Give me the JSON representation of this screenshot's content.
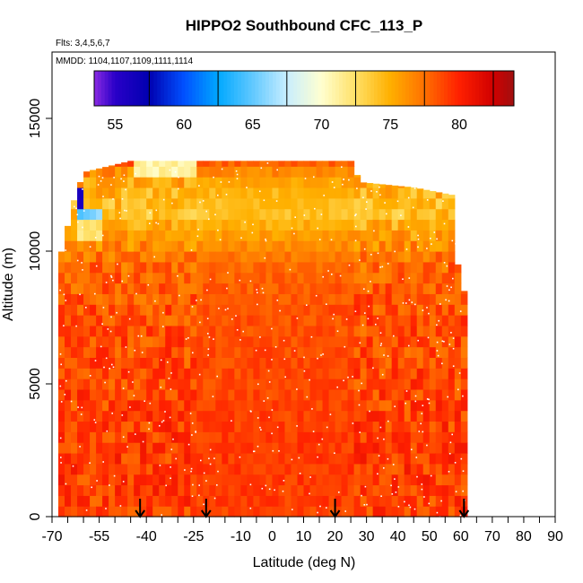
{
  "chart_data": {
    "type": "heatmap",
    "title": "HIPPO2 Southbound CFC_113_P",
    "flights_note": "Flts: 3,4,5,6,7",
    "dates_note": "MMDD: 1104,1107,1109,1111,1114",
    "xlabel": "Latitude (deg N)",
    "ylabel": "Altitude (m)",
    "xlim": [
      -70,
      90
    ],
    "ylim": [
      0,
      17500
    ],
    "x_ticks": [
      -70,
      -55,
      -40,
      -25,
      -10,
      0,
      10,
      20,
      30,
      40,
      50,
      60,
      70,
      80,
      90
    ],
    "y_ticks": [
      0,
      5000,
      10000,
      15000
    ],
    "colorbar": {
      "range": [
        51,
        81.5
      ],
      "ticks": [
        55,
        60,
        65,
        70,
        75,
        80
      ],
      "stops": [
        {
          "v": 51.0,
          "c": "#8a2be2"
        },
        {
          "v": 52.5,
          "c": "#2a00c8"
        },
        {
          "v": 55.0,
          "c": "#0000b0"
        },
        {
          "v": 57.5,
          "c": "#0050ff"
        },
        {
          "v": 60.0,
          "c": "#00a8ff"
        },
        {
          "v": 62.5,
          "c": "#60c8ff"
        },
        {
          "v": 65.0,
          "c": "#c8eeff"
        },
        {
          "v": 67.5,
          "c": "#ffffd0"
        },
        {
          "v": 70.0,
          "c": "#ffe066"
        },
        {
          "v": 72.5,
          "c": "#ffb000"
        },
        {
          "v": 75.0,
          "c": "#ff7000"
        },
        {
          "v": 77.5,
          "c": "#ff2000"
        },
        {
          "v": 80.0,
          "c": "#d00000"
        },
        {
          "v": 81.5,
          "c": "#a01010"
        }
      ]
    },
    "arrows_latitude": [
      -42,
      -21,
      20,
      61
    ],
    "coverage": {
      "lat_min": -68,
      "lat_max": 61,
      "alt_max_by_lat": [
        {
          "lat": -68,
          "alt": 9500
        },
        {
          "lat": -62,
          "alt": 12400
        },
        {
          "lat": -59,
          "alt": 13000
        },
        {
          "lat": -45,
          "alt": 13400
        },
        {
          "lat": 25,
          "alt": 13400
        },
        {
          "lat": 28,
          "alt": 12600
        },
        {
          "lat": 45,
          "alt": 12400
        },
        {
          "lat": 58,
          "alt": 12100
        },
        {
          "lat": 59,
          "alt": 9500
        },
        {
          "lat": 61,
          "alt": 8500
        }
      ]
    },
    "values_by_altitude": [
      {
        "alt": 0,
        "value": 76.5
      },
      {
        "alt": 2000,
        "value": 76.8
      },
      {
        "alt": 5000,
        "value": 76.3
      },
      {
        "alt": 8000,
        "value": 76.0
      },
      {
        "alt": 9500,
        "value": 75.2
      },
      {
        "alt": 10500,
        "value": 73.5
      },
      {
        "alt": 11500,
        "value": 71.5
      },
      {
        "alt": 12500,
        "value": 72.5
      },
      {
        "alt": 13400,
        "value": 75.5
      }
    ],
    "high_latitude_anomalies": [
      {
        "lat_from": -62,
        "lat_to": -54,
        "alt_from": 11200,
        "alt_to": 11700,
        "value": 63
      },
      {
        "lat_from": -62,
        "lat_to": -54,
        "alt_from": 10500,
        "alt_to": 11200,
        "value": 69.5
      },
      {
        "lat_from": -62,
        "lat_to": -60,
        "alt_from": 11800,
        "alt_to": 12400,
        "value": 53
      },
      {
        "lat_from": -44,
        "lat_to": -25,
        "alt_from": 12900,
        "alt_to": 13400,
        "value": 68.5
      }
    ]
  }
}
